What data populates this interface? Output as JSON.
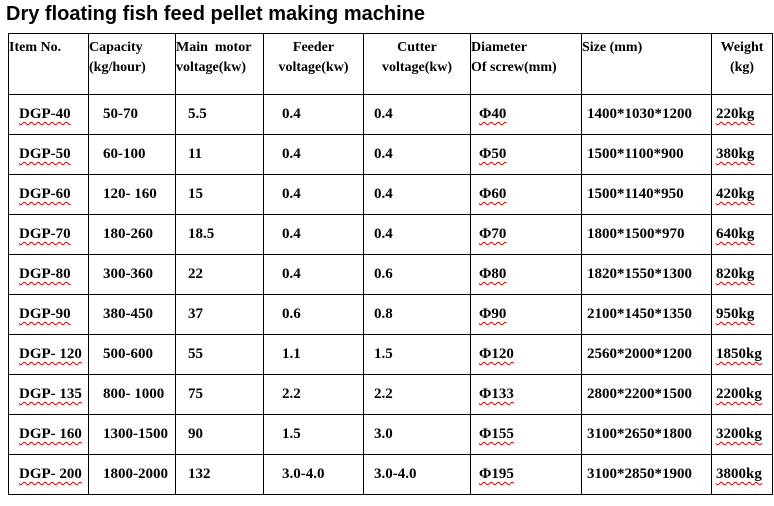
{
  "title": "Dry floating fish feed pellet making machine",
  "headers": {
    "item": "Item No.",
    "capacity_1": "Capacity",
    "capacity_2": "(kg/hour)",
    "motor_1": "Main  motor",
    "motor_2": "voltage(kw)",
    "feeder_1": "Feeder",
    "feeder_2": "voltage(kw)",
    "cutter_1": "Cutter",
    "cutter_2": "voltage(kw)",
    "diameter_1": "Diameter",
    "diameter_2": "Of screw(mm)",
    "size": "Size (mm)",
    "weight_1": "Weight",
    "weight_2": "(kg)"
  },
  "rows": [
    {
      "item": "DGP-40",
      "capacity": "50-70",
      "motor": "5.5",
      "feeder": "0.4",
      "cutter": "0.4",
      "diameter": "Φ40",
      "size": "1400*1030*1200",
      "weight": "220kg"
    },
    {
      "item": "DGP-50",
      "capacity": "60-100",
      "motor": "11",
      "feeder": "0.4",
      "cutter": "0.4",
      "diameter": "Φ50",
      "size": "1500*1100*900",
      "weight": "380kg"
    },
    {
      "item": "DGP-60",
      "capacity": "120- 160",
      "motor": "15",
      "feeder": "0.4",
      "cutter": "0.4",
      "diameter": "Φ60",
      "size": "1500*1140*950",
      "weight": "420kg"
    },
    {
      "item": "DGP-70",
      "capacity": "180-260",
      "motor": "18.5",
      "feeder": "0.4",
      "cutter": "0.4",
      "diameter": "Φ70",
      "size": "1800*1500*970",
      "weight": "640kg"
    },
    {
      "item": "DGP-80",
      "capacity": "300-360",
      "motor": "22",
      "feeder": "0.4",
      "cutter": "0.6",
      "diameter": "Φ80",
      "size": "1820*1550*1300",
      "weight": "820kg"
    },
    {
      "item": "DGP-90",
      "capacity": "380-450",
      "motor": "37",
      "feeder": "0.6",
      "cutter": "0.8",
      "diameter": "Φ90",
      "size": "2100*1450*1350",
      "weight": "950kg"
    },
    {
      "item": "DGP- 120",
      "capacity": "500-600",
      "motor": "55",
      "feeder": "1.1",
      "cutter": "1.5",
      "diameter": "Φ120",
      "size": "2560*2000*1200",
      "weight": "1850kg"
    },
    {
      "item": "DGP- 135",
      "capacity": "800- 1000",
      "motor": "75",
      "feeder": "2.2",
      "cutter": "2.2",
      "diameter": "Φ133",
      "size": "2800*2200*1500",
      "weight": "2200kg"
    },
    {
      "item": "DGP- 160",
      "capacity": "1300-1500",
      "motor": "90",
      "feeder": "1.5",
      "cutter": "3.0",
      "diameter": "Φ155",
      "size": "3100*2650*1800",
      "weight": "3200kg"
    },
    {
      "item": "DGP- 200",
      "capacity": "1800-2000",
      "motor": "132",
      "feeder": "3.0-4.0",
      "cutter": "3.0-4.0",
      "diameter": "Φ195",
      "size": "3100*2850*1900",
      "weight": "3800kg"
    }
  ]
}
